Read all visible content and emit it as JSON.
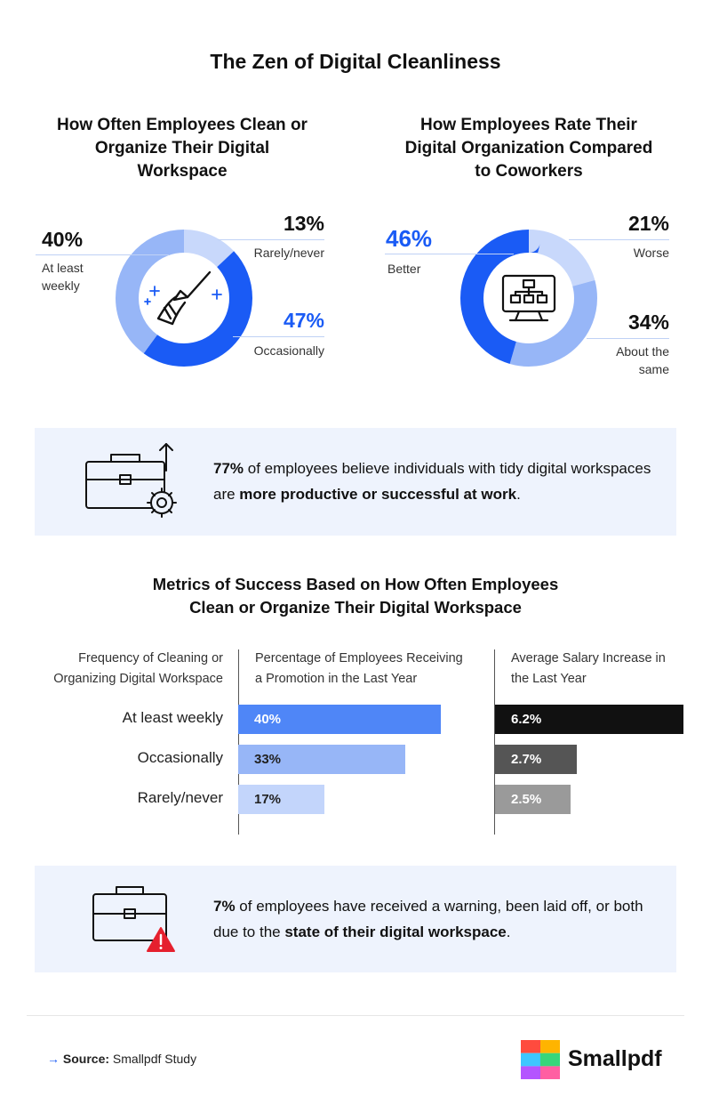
{
  "title": "The Zen of Digital Cleanliness",
  "donut1": {
    "title_lines": [
      "How Often Employees Clean or",
      "Organize Their Digital",
      "Workspace"
    ],
    "segments": [
      {
        "pct": "13%",
        "label": "Rarely/never",
        "value": 13,
        "color": "#c8d8fb"
      },
      {
        "pct": "47%",
        "label": "Occasionally",
        "value": 47,
        "color": "#1a5bf5"
      },
      {
        "pct": "40%",
        "label_lines": [
          "At least",
          "weekly"
        ],
        "value": 40,
        "color": "#97b6f7"
      }
    ]
  },
  "donut2": {
    "title_lines": [
      "How Employees Rate Their",
      "Digital Organization Compared",
      "to Coworkers"
    ],
    "segments": [
      {
        "pct": "21%",
        "label": "Worse",
        "value": 21,
        "color": "#c8d8fb"
      },
      {
        "pct": "34%",
        "label_lines": [
          "About the",
          "same"
        ],
        "value": 34,
        "color": "#97b6f7"
      },
      {
        "pct": "46%",
        "label": "Better",
        "value": 46,
        "color": "#1a5bf5"
      }
    ]
  },
  "callout1": {
    "pct": "77%",
    "text_a": " of employees believe individuals with tidy digital workspaces are ",
    "bold": "more productive or successful at work",
    "text_b": "."
  },
  "metrics": {
    "title_lines": [
      "Metrics of Success Based on How Often Employees",
      "Clean or Organize Their Digital Workspace"
    ],
    "col1_lines": [
      "Frequency of Cleaning or",
      "Organizing Digital Workspace"
    ],
    "col2_lines": [
      "Percentage of Employees Receiving",
      "a Promotion in the Last Year"
    ],
    "col3_lines": [
      "Average Salary Increase in",
      "the Last Year"
    ]
  },
  "chart_data": [
    {
      "type": "pie",
      "title": "How Often Employees Clean or Organize Their Digital Workspace",
      "categories": [
        "Rarely/never",
        "Occasionally",
        "At least weekly"
      ],
      "values": [
        13,
        47,
        40
      ]
    },
    {
      "type": "pie",
      "title": "How Employees Rate Their Digital Organization Compared to Coworkers",
      "categories": [
        "Worse",
        "About the same",
        "Better"
      ],
      "values": [
        21,
        34,
        46
      ]
    },
    {
      "type": "bar",
      "title": "Percentage of Employees Receiving a Promotion in the Last Year",
      "categories": [
        "At least weekly",
        "Occasionally",
        "Rarely/never"
      ],
      "values": [
        40,
        33,
        17
      ],
      "labels": [
        "40%",
        "33%",
        "17%"
      ],
      "colors": [
        "#4f86f7",
        "#97b6f7",
        "#c3d5fb"
      ]
    },
    {
      "type": "bar",
      "title": "Average Salary Increase in the Last Year",
      "categories": [
        "At least weekly",
        "Occasionally",
        "Rarely/never"
      ],
      "values": [
        6.2,
        2.7,
        2.5
      ],
      "labels": [
        "6.2%",
        "2.7%",
        "2.5%"
      ],
      "colors": [
        "#111111",
        "#555555",
        "#9a9a9a"
      ]
    }
  ],
  "callout2": {
    "pct": "7%",
    "text_a": " of employees have received a warning, been laid off, or both due to the ",
    "bold": "state of their digital workspace",
    "text_b": "."
  },
  "footer": {
    "arrow": "→",
    "source_label": "Source:",
    "source_text": " Smallpdf Study",
    "brand": "Smallpdf",
    "logo_colors": [
      "#ff4b3e",
      "#ffb400",
      "#3ec6ff",
      "#37d67a",
      "#b455ff",
      "#ff5fa2"
    ]
  }
}
